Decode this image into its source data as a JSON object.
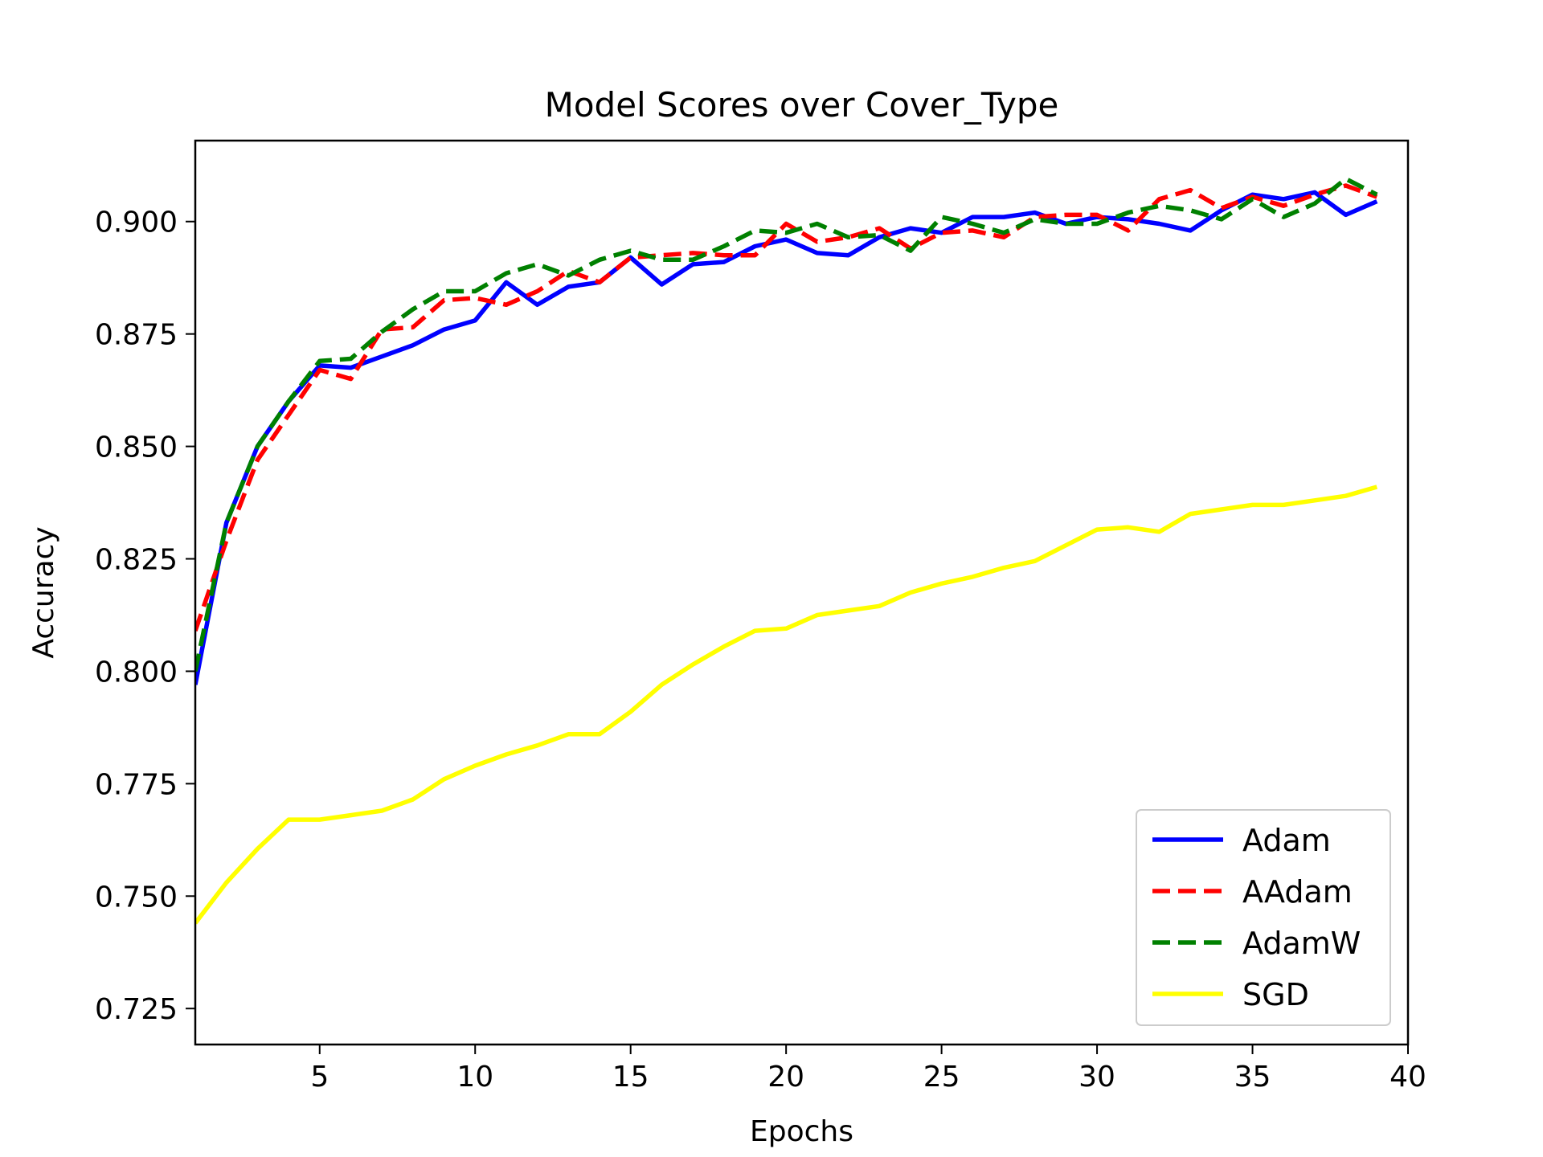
{
  "chart_data": {
    "type": "line",
    "title": "Model Scores over Cover_Type",
    "xlabel": "Epochs",
    "ylabel": "Accuracy",
    "xlim": [
      1,
      40
    ],
    "ylim": [
      0.717,
      0.918
    ],
    "xticks": [
      5,
      10,
      15,
      20,
      25,
      30,
      35,
      40
    ],
    "yticks": [
      0.725,
      0.75,
      0.775,
      0.8,
      0.825,
      0.85,
      0.875,
      0.9
    ],
    "xtick_labels": [
      "5",
      "10",
      "15",
      "20",
      "25",
      "30",
      "35",
      "40"
    ],
    "ytick_labels": [
      "0.725",
      "0.750",
      "0.775",
      "0.800",
      "0.825",
      "0.850",
      "0.875",
      "0.900"
    ],
    "grid": false,
    "legend_position": "lower-right",
    "x": [
      1,
      2,
      3,
      4,
      5,
      6,
      7,
      8,
      9,
      10,
      11,
      12,
      13,
      14,
      15,
      16,
      17,
      18,
      19,
      20,
      21,
      22,
      23,
      24,
      25,
      26,
      27,
      28,
      29,
      30,
      31,
      32,
      33,
      34,
      35,
      36,
      37,
      38,
      39
    ],
    "series": [
      {
        "name": "Adam",
        "color": "#0000ff",
        "dash": "solid",
        "values": [
          0.797,
          0.833,
          0.85,
          0.86,
          0.868,
          0.8675,
          0.87,
          0.8725,
          0.876,
          0.878,
          0.8865,
          0.8815,
          0.8855,
          0.8865,
          0.892,
          0.886,
          0.8905,
          0.891,
          0.8945,
          0.896,
          0.893,
          0.8925,
          0.8965,
          0.8985,
          0.8975,
          0.901,
          0.901,
          0.902,
          0.8995,
          0.901,
          0.9005,
          0.8995,
          0.898,
          0.9025,
          0.906,
          0.905,
          0.9065,
          0.9015,
          0.9045
        ]
      },
      {
        "name": "AAdam",
        "color": "#ff0000",
        "dash": "dashed",
        "values": [
          0.809,
          0.829,
          0.847,
          0.857,
          0.867,
          0.865,
          0.876,
          0.8765,
          0.8825,
          0.883,
          0.8815,
          0.8845,
          0.889,
          0.8865,
          0.892,
          0.8925,
          0.893,
          0.8925,
          0.8925,
          0.8995,
          0.8955,
          0.8965,
          0.8985,
          0.894,
          0.8975,
          0.898,
          0.8965,
          0.901,
          0.9015,
          0.9015,
          0.898,
          0.905,
          0.907,
          0.903,
          0.9055,
          0.9035,
          0.906,
          0.908,
          0.9055
        ]
      },
      {
        "name": "AdamW",
        "color": "#008000",
        "dash": "dashed",
        "values": [
          0.8,
          0.833,
          0.85,
          0.86,
          0.869,
          0.8695,
          0.8755,
          0.8805,
          0.8845,
          0.8845,
          0.8885,
          0.8905,
          0.888,
          0.8915,
          0.8935,
          0.8915,
          0.8915,
          0.8945,
          0.898,
          0.8975,
          0.8995,
          0.8965,
          0.897,
          0.8935,
          0.901,
          0.8995,
          0.8975,
          0.9005,
          0.8995,
          0.8995,
          0.902,
          0.9035,
          0.9025,
          0.9005,
          0.905,
          0.901,
          0.904,
          0.9095,
          0.906
        ]
      },
      {
        "name": "SGD",
        "color": "#ffff00",
        "dash": "solid",
        "values": [
          0.744,
          0.753,
          0.7605,
          0.767,
          0.767,
          0.768,
          0.769,
          0.7715,
          0.776,
          0.779,
          0.7815,
          0.7835,
          0.786,
          0.786,
          0.791,
          0.797,
          0.8015,
          0.8055,
          0.809,
          0.8095,
          0.8125,
          0.8135,
          0.8145,
          0.8175,
          0.8195,
          0.821,
          0.823,
          0.8245,
          0.828,
          0.8315,
          0.832,
          0.831,
          0.835,
          0.836,
          0.837,
          0.837,
          0.838,
          0.839,
          0.841
        ]
      }
    ]
  }
}
